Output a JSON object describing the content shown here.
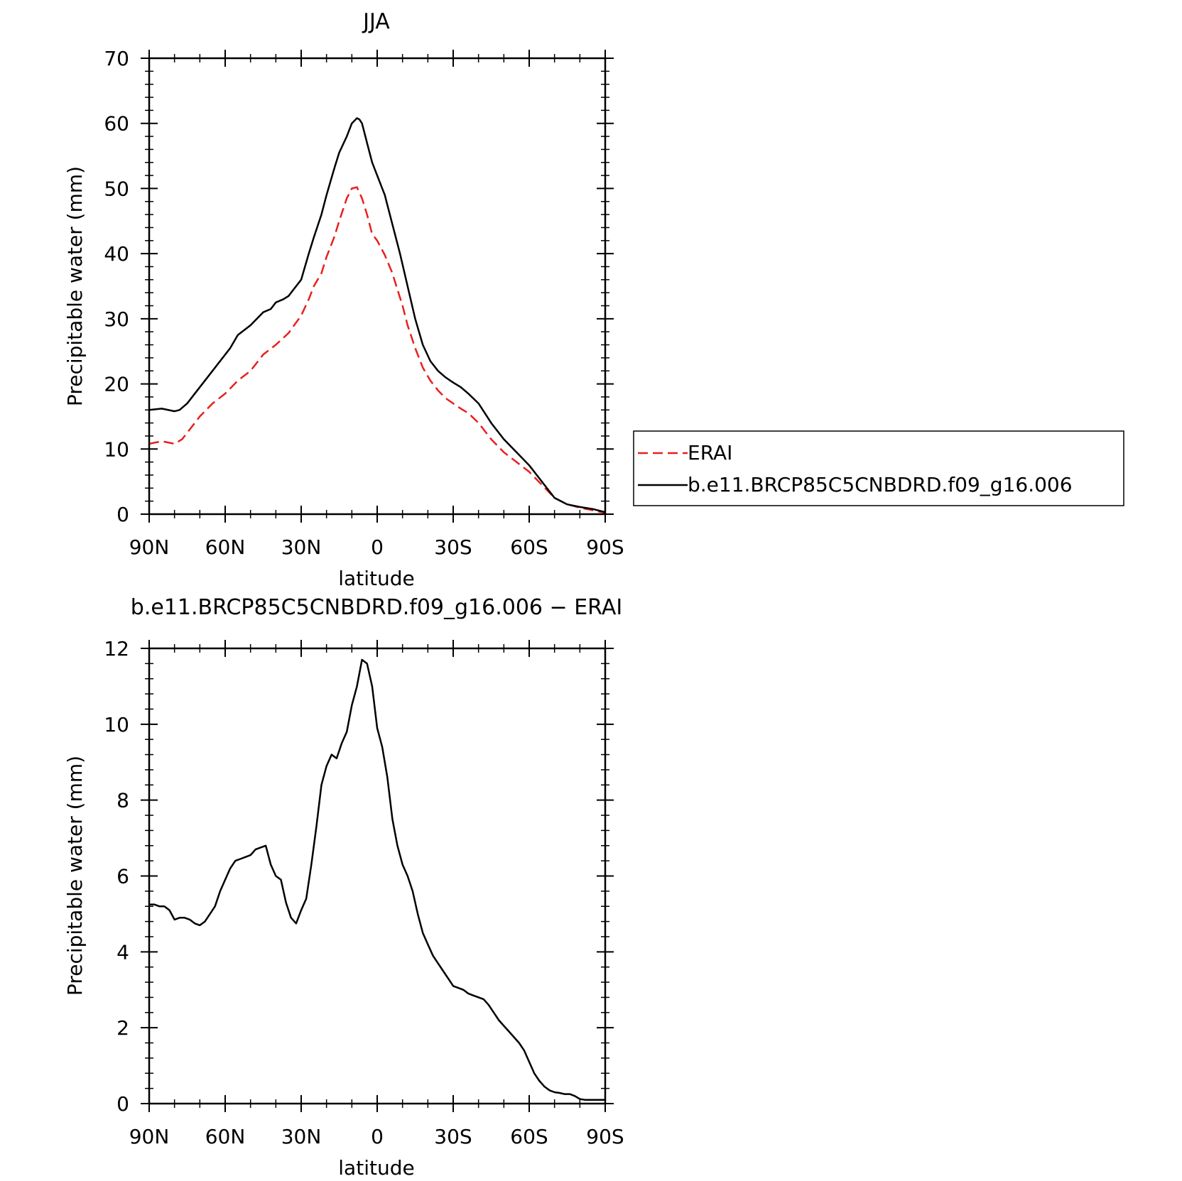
{
  "chart_data": [
    {
      "type": "line",
      "title": "JJA",
      "xlabel": "latitude",
      "ylabel": "Precipitable water (mm)",
      "xlim": [
        90,
        -90
      ],
      "ylim": [
        0,
        70
      ],
      "yticks": [
        0,
        10,
        20,
        30,
        40,
        50,
        60,
        70
      ],
      "xticks": [
        {
          "value": 90,
          "label": "90N"
        },
        {
          "value": 60,
          "label": "60N"
        },
        {
          "value": 30,
          "label": "30N"
        },
        {
          "value": 0,
          "label": "0"
        },
        {
          "value": -30,
          "label": "30S"
        },
        {
          "value": -60,
          "label": "60S"
        },
        {
          "value": -90,
          "label": "90S"
        }
      ],
      "legend": {
        "placement": "right",
        "entries": [
          "ERAI",
          "b.e11.BRCP85C5CNBDRD.f09_g16.006"
        ]
      },
      "series": [
        {
          "name": "ERAI",
          "color": "#e8201e",
          "dash": "dashed",
          "x": [
            90,
            85,
            80,
            77,
            75,
            72,
            70,
            65,
            60,
            55,
            50,
            45,
            40,
            35,
            30,
            27,
            25,
            22,
            20,
            17,
            15,
            12,
            10,
            8,
            6,
            4,
            2,
            0,
            -3,
            -6,
            -8,
            -10,
            -12,
            -15,
            -18,
            -21,
            -24,
            -27,
            -30,
            -33,
            -36,
            -40,
            -45,
            -50,
            -55,
            -60,
            -65,
            -70,
            -75,
            -80,
            -85,
            -90
          ],
          "y": [
            10.8,
            11.2,
            10.8,
            11.5,
            12.5,
            14,
            15,
            17,
            18.5,
            20.5,
            22,
            24.5,
            26,
            27.8,
            30.5,
            33,
            35,
            37,
            39.5,
            42.5,
            45,
            48.5,
            50,
            50.2,
            48.5,
            46,
            43,
            42,
            39.8,
            37,
            34.5,
            32,
            29,
            25.5,
            22.5,
            20.5,
            19,
            17.8,
            17,
            16.2,
            15.5,
            14,
            11.5,
            9.5,
            8,
            6.5,
            4.5,
            2.5,
            1.5,
            1,
            0.6,
            0.2
          ]
        },
        {
          "name": "b.e11.BRCP85C5CNBDRD.f09_g16.006",
          "color": "#000000",
          "dash": "solid",
          "x": [
            90,
            85,
            80,
            78,
            75,
            72,
            70,
            65,
            60,
            58,
            55,
            50,
            45,
            42,
            40,
            37,
            35,
            33,
            30,
            27,
            25,
            22,
            20,
            17,
            15,
            12,
            10,
            8,
            7,
            6,
            5,
            4,
            2,
            0,
            -3,
            -6,
            -9,
            -12,
            -15,
            -18,
            -21,
            -24,
            -27,
            -30,
            -33,
            -36,
            -40,
            -45,
            -50,
            -55,
            -60,
            -65,
            -70,
            -75,
            -80,
            -85,
            -90
          ],
          "y": [
            16,
            16.2,
            15.8,
            16,
            17,
            18.5,
            19.5,
            22,
            24.5,
            25.5,
            27.5,
            29,
            31,
            31.5,
            32.5,
            33,
            33.5,
            34.5,
            36,
            40,
            42.5,
            46,
            49,
            53,
            55.5,
            58,
            60,
            60.8,
            60.6,
            60,
            58.5,
            57,
            54,
            52,
            49,
            44.5,
            40,
            35,
            30,
            26,
            23.5,
            22,
            21,
            20.2,
            19.5,
            18.5,
            17,
            14,
            11.5,
            9.5,
            7.5,
            5,
            2.5,
            1.5,
            1.1,
            0.8,
            0.3
          ]
        }
      ]
    },
    {
      "type": "line",
      "title": "b.e11.BRCP85C5CNBDRD.f09_g16.006 − ERAI",
      "xlabel": "latitude",
      "ylabel": "Precipitable water (mm)",
      "xlim": [
        90,
        -90
      ],
      "ylim": [
        0,
        12
      ],
      "yticks": [
        0,
        2,
        4,
        6,
        8,
        10,
        12
      ],
      "xticks": [
        {
          "value": 90,
          "label": "90N"
        },
        {
          "value": 60,
          "label": "60N"
        },
        {
          "value": 30,
          "label": "30N"
        },
        {
          "value": 0,
          "label": "0"
        },
        {
          "value": -30,
          "label": "30S"
        },
        {
          "value": -60,
          "label": "60S"
        },
        {
          "value": -90,
          "label": "90S"
        }
      ],
      "series": [
        {
          "name": "b.e11.BRCP85C5CNBDRD.f09_g16.006 − ERAI",
          "color": "#000000",
          "dash": "solid",
          "x": [
            90,
            88,
            86,
            84,
            82,
            80,
            78,
            76,
            74,
            72,
            70,
            68,
            66,
            64,
            62,
            60,
            58,
            56,
            54,
            52,
            50,
            48,
            46,
            44,
            42,
            40,
            38,
            36,
            34,
            32,
            30,
            28,
            26,
            24,
            22,
            20,
            18,
            16,
            14,
            12,
            10,
            8,
            6,
            4,
            2,
            0,
            -2,
            -4,
            -6,
            -8,
            -10,
            -12,
            -14,
            -16,
            -18,
            -20,
            -22,
            -24,
            -26,
            -28,
            -30,
            -32,
            -34,
            -36,
            -38,
            -40,
            -42,
            -44,
            -46,
            -48,
            -50,
            -52,
            -54,
            -56,
            -58,
            -60,
            -62,
            -64,
            -66,
            -68,
            -70,
            -72,
            -74,
            -76,
            -78,
            -80,
            -82,
            -84,
            -86,
            -88,
            -90
          ],
          "y": [
            5.25,
            5.25,
            5.2,
            5.2,
            5.1,
            4.85,
            4.9,
            4.9,
            4.85,
            4.75,
            4.7,
            4.8,
            5.0,
            5.2,
            5.6,
            5.9,
            6.2,
            6.4,
            6.45,
            6.5,
            6.55,
            6.7,
            6.75,
            6.8,
            6.3,
            6.0,
            5.9,
            5.3,
            4.9,
            4.75,
            5.1,
            5.4,
            6.3,
            7.3,
            8.4,
            8.9,
            9.2,
            9.1,
            9.5,
            9.8,
            10.5,
            11.0,
            11.7,
            11.6,
            11.0,
            9.9,
            9.4,
            8.6,
            7.5,
            6.8,
            6.3,
            6.0,
            5.6,
            5.0,
            4.5,
            4.2,
            3.9,
            3.7,
            3.5,
            3.3,
            3.1,
            3.05,
            3.0,
            2.9,
            2.85,
            2.8,
            2.75,
            2.6,
            2.4,
            2.2,
            2.05,
            1.9,
            1.75,
            1.6,
            1.4,
            1.1,
            0.8,
            0.6,
            0.45,
            0.35,
            0.3,
            0.28,
            0.25,
            0.25,
            0.2,
            0.12,
            0.1,
            0.1,
            0.1,
            0.1,
            0.1
          ]
        }
      ]
    }
  ]
}
